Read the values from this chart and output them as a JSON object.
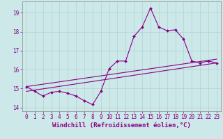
{
  "xlabel": "Windchill (Refroidissement éolien,°C)",
  "background_color": "#cce8e8",
  "grid_color": "#aacccc",
  "line_color": "#880088",
  "xlim": [
    -0.5,
    23.5
  ],
  "ylim": [
    13.8,
    19.6
  ],
  "yticks": [
    14,
    15,
    16,
    17,
    18,
    19
  ],
  "xticks": [
    0,
    1,
    2,
    3,
    4,
    5,
    6,
    7,
    8,
    9,
    10,
    11,
    12,
    13,
    14,
    15,
    16,
    17,
    18,
    19,
    20,
    21,
    22,
    23
  ],
  "curve1_x": [
    0,
    1,
    2,
    3,
    4,
    5,
    6,
    7,
    8,
    9,
    10,
    11,
    12,
    13,
    14,
    15,
    16,
    17,
    18,
    19,
    20,
    21,
    22,
    23
  ],
  "curve1_y": [
    15.1,
    14.85,
    14.6,
    14.8,
    14.85,
    14.75,
    14.6,
    14.35,
    14.15,
    14.85,
    16.05,
    16.45,
    16.45,
    17.75,
    18.25,
    19.25,
    18.25,
    18.05,
    18.1,
    17.6,
    16.45,
    16.35,
    16.45,
    16.35
  ],
  "curve2_x": [
    0,
    23
  ],
  "curve2_y": [
    15.1,
    16.55
  ],
  "curve3_x": [
    0,
    23
  ],
  "curve3_y": [
    14.85,
    16.35
  ],
  "fontsize_xlabel": 6.5,
  "fontsize_tick": 5.5,
  "linewidth": 0.8,
  "markersize": 2.0
}
